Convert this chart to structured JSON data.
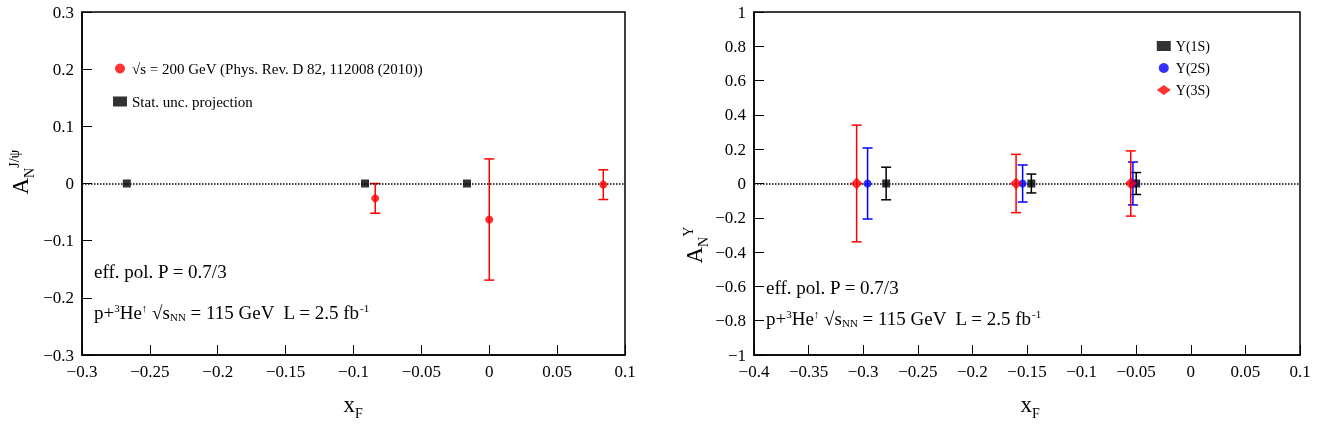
{
  "chart_data": [
    {
      "type": "scatter",
      "xlabel": "x$_{F}$",
      "ylabel": "A$_{N}$$^{J/ψ}$",
      "xlim": [
        -0.3,
        0.1
      ],
      "xticks": [
        -0.3,
        -0.25,
        -0.2,
        -0.15,
        -0.1,
        -0.05,
        0,
        0.05,
        0.1
      ],
      "ylim": [
        -0.3,
        0.3
      ],
      "yticks": [
        -0.3,
        -0.2,
        -0.1,
        0,
        0.1,
        0.2,
        0.3
      ],
      "grid": false,
      "legend": "top left",
      "series": [
        {
          "name": "√s = 200 GeV (Phys. Rev. D 82, 112008 (2010))",
          "color": "#ff0000",
          "marker": "circle",
          "x": [
            -0.084,
            0,
            0.084
          ],
          "values": [
            -0.026,
            -0.063,
            -0.002
          ],
          "errors": [
            0.026,
            0.106,
            0.026
          ]
        },
        {
          "name": "Stat. unc. projection",
          "color": "#000000",
          "marker": "square",
          "x": [
            -0.267,
            -0.0915,
            -0.0164
          ],
          "values": [
            0,
            0,
            0
          ]
        }
      ],
      "ref_lines": [
        {
          "axis": "y",
          "value": 0,
          "color": "#000000",
          "line_style": "dotted"
        }
      ],
      "annotations": [
        "eff. pol. P = 0.7/3",
        "p+$^{3}$He$^{↑}$ √s$_{NN}$ = 115 GeV  L = 2.5 fb$^{-1}$"
      ]
    },
    {
      "type": "scatter",
      "xlabel": "x$_{F}$",
      "ylabel": "A$_{N}$$^{Υ}$",
      "xlim": [
        -0.4,
        0.1
      ],
      "xticks": [
        -0.4,
        -0.35,
        -0.3,
        -0.25,
        -0.2,
        -0.15,
        -0.1,
        -0.05,
        0,
        0.05,
        0.1
      ],
      "ylim": [
        -1,
        1
      ],
      "yticks": [
        -1,
        -0.8,
        -0.6,
        -0.4,
        -0.2,
        0,
        0.2,
        0.4,
        0.6,
        0.8,
        1
      ],
      "grid": false,
      "legend": "top right",
      "series": [
        {
          "name": "Υ(1S)",
          "color": "#000000",
          "marker": "square",
          "x": [
            -0.279,
            -0.146,
            -0.05
          ],
          "values": [
            0,
            0,
            0
          ],
          "errors": [
            0.095,
            0.055,
            0.064
          ]
        },
        {
          "name": "Υ(2S)",
          "color": "#0000ff",
          "marker": "circle",
          "x": [
            -0.296,
            -0.154,
            -0.053
          ],
          "values": [
            0,
            0,
            0
          ],
          "errors": [
            0.207,
            0.108,
            0.125
          ]
        },
        {
          "name": "Υ(3S)",
          "color": "#ff0000",
          "marker": "diamond",
          "x": [
            -0.306,
            -0.16,
            -0.055
          ],
          "values": [
            0,
            0,
            0
          ],
          "errors": [
            0.34,
            0.17,
            0.19
          ]
        }
      ],
      "ref_lines": [
        {
          "axis": "y",
          "value": 0,
          "color": "#000000",
          "line_style": "dotted"
        }
      ],
      "annotations": [
        "eff. pol. P = 0.7/3",
        "p+$^{3}$He$^{↑}$ √s$_{NN}$ = 115 GeV  L = 2.5 fb$^{-1}$"
      ]
    }
  ]
}
